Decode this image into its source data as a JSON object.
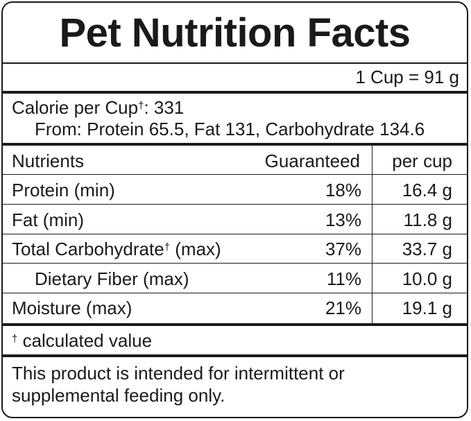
{
  "title": "Pet Nutrition Facts",
  "serving": "1 Cup = 91 g",
  "calories": {
    "label": "Calorie per Cup",
    "dagger": "†",
    "value": ": 331",
    "breakdown": "From: Protein 65.5, Fat 131, Carbohydrate 134.6"
  },
  "table": {
    "headers": [
      "Nutrients",
      "Guaranteed",
      "per cup"
    ],
    "rows": [
      {
        "name": "Protein (min)",
        "dagger": "",
        "suffix": "",
        "guaranteed": "18%",
        "per_cup": "16.4 g"
      },
      {
        "name": "Fat (min)",
        "dagger": "",
        "suffix": "",
        "guaranteed": "13%",
        "per_cup": "11.8 g"
      },
      {
        "name": "Total Carbohydrate",
        "dagger": "†",
        "suffix": " (max)",
        "guaranteed": "37%",
        "per_cup": "33.7 g"
      },
      {
        "name": "Dietary Fiber (max)",
        "dagger": "",
        "suffix": "",
        "guaranteed": "11%",
        "per_cup": "10.0 g"
      },
      {
        "name": "Moisture (max)",
        "dagger": "",
        "suffix": "",
        "guaranteed": "21%",
        "per_cup": "19.1 g"
      }
    ]
  },
  "footnote": {
    "dagger": "†",
    "text": " calculated value"
  },
  "disclaimer": {
    "line1": "This product is intended for intermittent or",
    "line2": "supplemental feeding only."
  }
}
